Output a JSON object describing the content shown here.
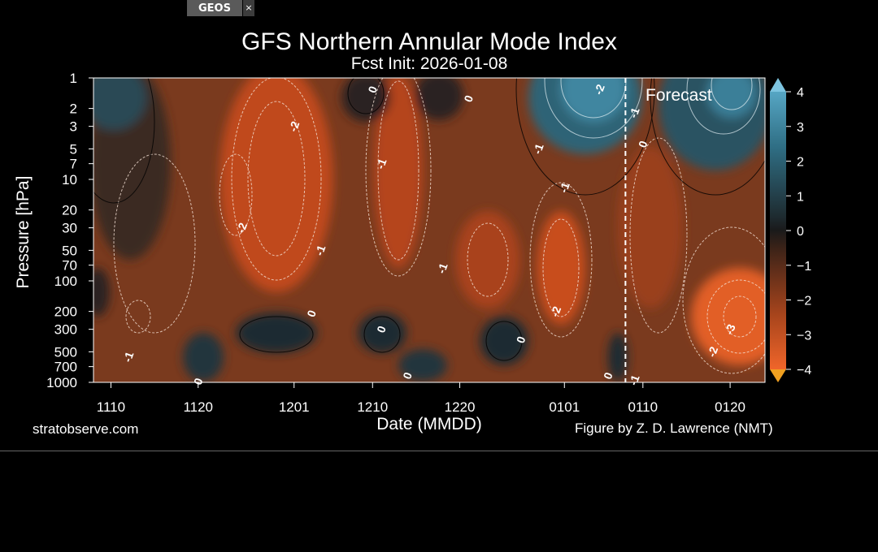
{
  "tab": {
    "label": "GEOS",
    "close_glyph": "×"
  },
  "footer": {
    "site": "stratobserve.com",
    "author": "Figure by Z. D. Lawrence (NMT)"
  },
  "colors": {
    "positive": "#4a9bb5",
    "negative": "#e8632a",
    "neutral": "#222222",
    "background": "#000000"
  },
  "chart_data": {
    "type": "heatmap",
    "title": "GFS Northern Annular Mode Index",
    "subtitle": "Fcst Init: 2026-01-08",
    "xlabel": "Date (MMDD)",
    "ylabel": "Pressure [hPa]",
    "x_ticks": [
      "1110",
      "1120",
      "1201",
      "1210",
      "1220",
      "0101",
      "0110",
      "0120"
    ],
    "y_ticks": [
      1,
      2,
      3,
      5,
      7,
      10,
      20,
      30,
      50,
      70,
      100,
      200,
      300,
      500,
      700,
      1000
    ],
    "y_scale": "log",
    "y_range": [
      1000,
      1
    ],
    "x_range": [
      "1108",
      "1124"
    ],
    "forecast_start": "0108",
    "forecast_label": "Forecast",
    "colorbar": {
      "min": -4,
      "max": 4,
      "ticks": [
        4,
        3,
        2,
        1,
        0,
        -1,
        -2,
        -3,
        -4
      ],
      "tick_labels": [
        "4",
        "3",
        "2",
        "1",
        "0",
        "−1",
        "−2",
        "−3",
        "−4"
      ]
    },
    "contour_labels": [
      {
        "text": "-2",
        "date": "1201",
        "p": 3
      },
      {
        "text": "-2",
        "date": "1125",
        "p": 30
      },
      {
        "text": "-1",
        "date": "1204",
        "p": 50
      },
      {
        "text": "0",
        "date": "1210",
        "p": 1.3
      },
      {
        "text": "0",
        "date": "1221",
        "p": 1.6
      },
      {
        "text": "-1",
        "date": "1211",
        "p": 7
      },
      {
        "text": "-1",
        "date": "1229",
        "p": 5
      },
      {
        "text": "-1",
        "date": "0101",
        "p": 12
      },
      {
        "text": "-2",
        "date": "0105",
        "p": 1.3
      },
      {
        "text": "-1",
        "date": "0109",
        "p": 2.2
      },
      {
        "text": "0",
        "date": "0110",
        "p": 4.5
      },
      {
        "text": "-1",
        "date": "1218",
        "p": 75
      },
      {
        "text": "-2",
        "date": "1231",
        "p": 200
      },
      {
        "text": "0",
        "date": "1203",
        "p": 210
      },
      {
        "text": "0",
        "date": "1211",
        "p": 300
      },
      {
        "text": "0",
        "date": "1227",
        "p": 380
      },
      {
        "text": "-3",
        "date": "0120",
        "p": 300
      },
      {
        "text": "-2",
        "date": "0118",
        "p": 500
      },
      {
        "text": "0",
        "date": "0106",
        "p": 860
      },
      {
        "text": "-1",
        "date": "0109",
        "p": 950
      },
      {
        "text": "0",
        "date": "1214",
        "p": 860
      },
      {
        "text": "0",
        "date": "1120",
        "p": 980
      },
      {
        "text": "-1",
        "date": "1112",
        "p": 560
      }
    ]
  }
}
